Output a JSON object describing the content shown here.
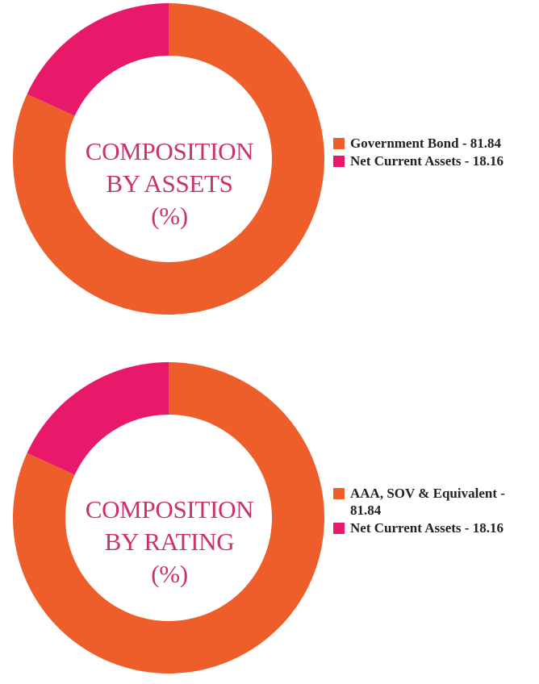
{
  "chart_data": [
    {
      "type": "pie",
      "title_lines": [
        "COMPOSITION",
        "BY ASSETS",
        "(%)"
      ],
      "categories": [
        "Government Bond",
        "Net Current Assets"
      ],
      "values": [
        81.84,
        18.16
      ],
      "colors": [
        "#ee5e2b",
        "#e8196b"
      ],
      "legend": [
        "Government Bond - 81.84",
        "Net Current Assets - 18.16"
      ],
      "legend_position": "right"
    },
    {
      "type": "pie",
      "title_lines": [
        "COMPOSITION",
        "BY RATING",
        "(%)"
      ],
      "categories": [
        "AAA, SOV & Equivalent",
        "Net Current Assets"
      ],
      "values": [
        81.84,
        18.16
      ],
      "colors": [
        "#ee5e2b",
        "#e8196b"
      ],
      "legend": [
        "AAA, SOV & Equivalent - 81.84",
        "Net Current Assets - 18.16"
      ],
      "legend_position": "right"
    }
  ]
}
